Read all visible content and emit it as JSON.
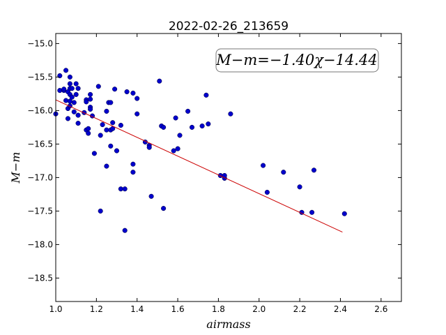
{
  "chart_data": {
    "type": "scatter",
    "title": "2022-02-26_213659",
    "xlabel": "airmass",
    "ylabel": "M−m",
    "xlim": [
      1.0,
      2.7
    ],
    "ylim": [
      -18.85,
      -14.85
    ],
    "y_inverted": true,
    "grid": false,
    "legend": "none",
    "xticks": [
      1.0,
      1.2,
      1.4,
      1.6,
      1.8,
      2.0,
      2.2,
      2.4,
      2.6
    ],
    "xtick_labels": [
      "1.0",
      "1.2",
      "1.4",
      "1.6",
      "1.8",
      "2.0",
      "2.2",
      "2.4",
      "2.6"
    ],
    "yticks": [
      -15.0,
      -15.5,
      -16.0,
      -16.5,
      -17.0,
      -17.5,
      -18.0,
      -18.5
    ],
    "ytick_labels": [
      "−15.0",
      "−15.5",
      "−16.0",
      "−16.5",
      "−17.0",
      "−17.5",
      "−18.0",
      "−18.5"
    ],
    "annotation": "M−m=−1.40χ−14.44",
    "point_color": "#0000cc",
    "fit_color": "#cc0000",
    "fit": {
      "slope": -1.4,
      "intercept": -14.44,
      "x_range": [
        1.0,
        2.41
      ]
    },
    "points": [
      [
        1.0,
        -16.05
      ],
      [
        1.02,
        -15.7
      ],
      [
        1.02,
        -15.48
      ],
      [
        1.04,
        -15.7
      ],
      [
        1.04,
        -15.68
      ],
      [
        1.05,
        -15.4
      ],
      [
        1.05,
        -15.85
      ],
      [
        1.06,
        -15.97
      ],
      [
        1.06,
        -15.72
      ],
      [
        1.06,
        -16.12
      ],
      [
        1.07,
        -15.67
      ],
      [
        1.07,
        -15.76
      ],
      [
        1.07,
        -15.86
      ],
      [
        1.07,
        -15.93
      ],
      [
        1.07,
        -15.6
      ],
      [
        1.07,
        -15.5
      ],
      [
        1.08,
        -15.8
      ],
      [
        1.08,
        -15.67
      ],
      [
        1.09,
        -15.88
      ],
      [
        1.09,
        -16.02
      ],
      [
        1.1,
        -15.6
      ],
      [
        1.1,
        -15.76
      ],
      [
        1.11,
        -15.67
      ],
      [
        1.11,
        -16.07
      ],
      [
        1.11,
        -16.19
      ],
      [
        1.14,
        -16.03
      ],
      [
        1.15,
        -15.84
      ],
      [
        1.15,
        -15.87
      ],
      [
        1.15,
        -16.29
      ],
      [
        1.16,
        -16.34
      ],
      [
        1.16,
        -16.27
      ],
      [
        1.17,
        -15.76
      ],
      [
        1.17,
        -15.83
      ],
      [
        1.17,
        -15.95
      ],
      [
        1.17,
        -15.98
      ],
      [
        1.18,
        -16.08
      ],
      [
        1.19,
        -16.64
      ],
      [
        1.21,
        -15.64
      ],
      [
        1.22,
        -16.37
      ],
      [
        1.22,
        -17.5
      ],
      [
        1.23,
        -16.21
      ],
      [
        1.25,
        -16.01
      ],
      [
        1.25,
        -16.29
      ],
      [
        1.25,
        -16.83
      ],
      [
        1.26,
        -15.88
      ],
      [
        1.27,
        -15.88
      ],
      [
        1.27,
        -16.29
      ],
      [
        1.27,
        -16.53
      ],
      [
        1.28,
        -16.27
      ],
      [
        1.28,
        -16.18
      ],
      [
        1.29,
        -15.68
      ],
      [
        1.3,
        -16.6
      ],
      [
        1.32,
        -16.22
      ],
      [
        1.32,
        -17.17
      ],
      [
        1.34,
        -17.17
      ],
      [
        1.34,
        -17.79
      ],
      [
        1.35,
        -15.72
      ],
      [
        1.38,
        -15.74
      ],
      [
        1.38,
        -16.8
      ],
      [
        1.38,
        -16.92
      ],
      [
        1.4,
        -15.82
      ],
      [
        1.4,
        -16.05
      ],
      [
        1.44,
        -16.47
      ],
      [
        1.46,
        -16.52
      ],
      [
        1.46,
        -16.55
      ],
      [
        1.47,
        -17.28
      ],
      [
        1.51,
        -15.56
      ],
      [
        1.52,
        -16.23
      ],
      [
        1.53,
        -16.25
      ],
      [
        1.53,
        -17.46
      ],
      [
        1.58,
        -16.6
      ],
      [
        1.59,
        -16.11
      ],
      [
        1.6,
        -16.57
      ],
      [
        1.61,
        -16.37
      ],
      [
        1.65,
        -16.01
      ],
      [
        1.67,
        -16.25
      ],
      [
        1.72,
        -16.23
      ],
      [
        1.74,
        -15.77
      ],
      [
        1.75,
        -16.2
      ],
      [
        1.81,
        -16.97
      ],
      [
        1.83,
        -17.01
      ],
      [
        1.83,
        -16.97
      ],
      [
        1.86,
        -16.05
      ],
      [
        2.02,
        -16.82
      ],
      [
        2.04,
        -17.22
      ],
      [
        2.12,
        -16.92
      ],
      [
        2.2,
        -17.14
      ],
      [
        2.21,
        -17.52
      ],
      [
        2.26,
        -17.52
      ],
      [
        2.27,
        -16.89
      ],
      [
        2.42,
        -17.54
      ]
    ]
  }
}
